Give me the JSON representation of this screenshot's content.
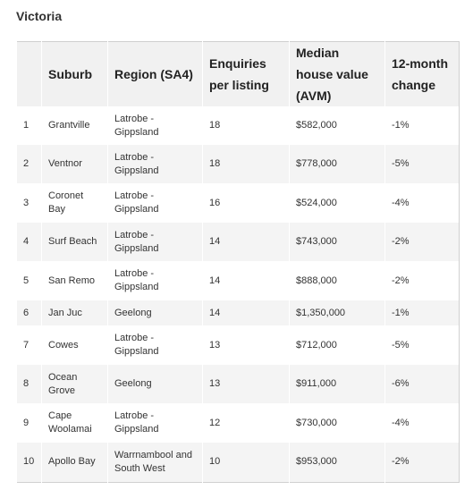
{
  "header": {
    "title": "Victoria"
  },
  "table": {
    "columns": [
      "",
      "Suburb",
      "Region (SA4)",
      "Enquiries per listing",
      "Median house value (AVM)",
      "12-month change"
    ],
    "rows": [
      [
        "1",
        "Grantville",
        "Latrobe - Gippsland",
        "18",
        "$582,000",
        "-1%"
      ],
      [
        "2",
        "Ventnor",
        "Latrobe - Gippsland",
        "18",
        "$778,000",
        "-5%"
      ],
      [
        "3",
        "Coronet Bay",
        "Latrobe - Gippsland",
        "16",
        "$524,000",
        "-4%"
      ],
      [
        "4",
        "Surf Beach",
        "Latrobe - Gippsland",
        "14",
        "$743,000",
        "-2%"
      ],
      [
        "5",
        "San Remo",
        "Latrobe - Gippsland",
        "14",
        "$888,000",
        "-2%"
      ],
      [
        "6",
        "Jan Juc",
        "Geelong",
        "14",
        "$1,350,000",
        "-1%"
      ],
      [
        "7",
        "Cowes",
        "Latrobe - Gippsland",
        "13",
        "$712,000",
        "-5%"
      ],
      [
        "8",
        "Ocean Grove",
        "Geelong",
        "13",
        "$911,000",
        "-6%"
      ],
      [
        "9",
        "Cape Woolamai",
        "Latrobe - Gippsland",
        "12",
        "$730,000",
        "-4%"
      ],
      [
        "10",
        "Apollo Bay",
        "Warrnambool and South West",
        "10",
        "$953,000",
        "-2%"
      ]
    ]
  }
}
